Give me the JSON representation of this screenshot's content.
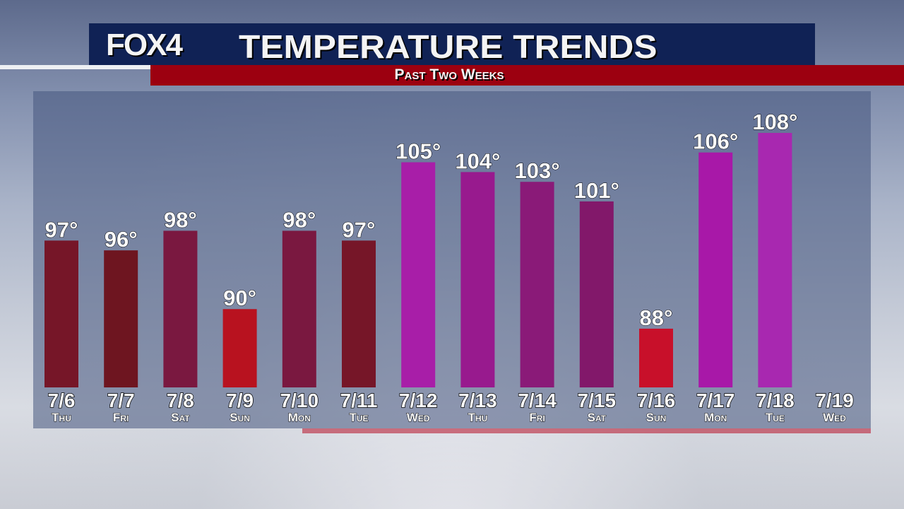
{
  "header": {
    "logo": "FOX4",
    "title": "TEMPERATURE TRENDS",
    "subtitle": "Past Two Weeks"
  },
  "chart_data": {
    "type": "bar",
    "title": "TEMPERATURE TRENDS",
    "subtitle": "Past Two Weeks",
    "categories": [
      "7/6",
      "7/7",
      "7/8",
      "7/9",
      "7/10",
      "7/11",
      "7/12",
      "7/13",
      "7/14",
      "7/15",
      "7/16",
      "7/17",
      "7/18",
      "7/19"
    ],
    "days": [
      "Thu",
      "Fri",
      "Sat",
      "Sun",
      "Mon",
      "Tue",
      "Wed",
      "Thu",
      "Fri",
      "Sat",
      "Sun",
      "Mon",
      "Tue",
      "Wed"
    ],
    "values": [
      97,
      96,
      98,
      90,
      98,
      97,
      105,
      104,
      103,
      101,
      88,
      106,
      108,
      null
    ],
    "labels": [
      "97°",
      "96°",
      "98°",
      "90°",
      "98°",
      "97°",
      "105°",
      "104°",
      "103°",
      "101°",
      "88°",
      "106°",
      "108°",
      ""
    ],
    "colors": [
      "#761628",
      "#6e1520",
      "#7a1840",
      "#b8121f",
      "#7a1840",
      "#761628",
      "#a81ea8",
      "#981a8e",
      "#8a1a78",
      "#82186a",
      "#c8102a",
      "#a818a8",
      "#a828b0",
      ""
    ],
    "ylim": [
      82,
      108
    ],
    "grid": false
  }
}
